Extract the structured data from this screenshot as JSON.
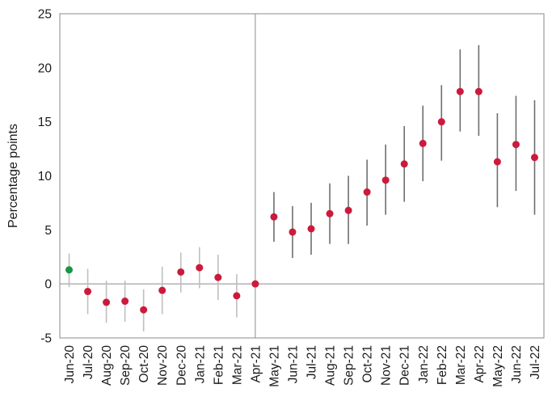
{
  "chart_data": {
    "type": "scatter",
    "title": "",
    "xlabel": "",
    "ylabel": "Percentage points",
    "ylim": [
      -5,
      25
    ],
    "yticks": [
      25,
      20,
      15,
      10,
      5,
      0,
      -5
    ],
    "grid": false,
    "legend_position": "none",
    "zero_line": true,
    "reference_category": "Apr-21",
    "palette": {
      "red": "#cc1a3c",
      "green": "#169647",
      "ci_light": "#bfbfbf",
      "ci_dark": "#6e6e6e",
      "axis": "#8a8a8a"
    },
    "points": [
      {
        "label": "Jun-20",
        "value": 1.3,
        "lo": -0.3,
        "hi": 2.8,
        "dot": "green",
        "ci": "ci_light"
      },
      {
        "label": "Jul-20",
        "value": -0.7,
        "lo": -2.8,
        "hi": 1.4,
        "dot": "red",
        "ci": "ci_light"
      },
      {
        "label": "Aug-20",
        "value": -1.7,
        "lo": -3.6,
        "hi": 0.3,
        "dot": "red",
        "ci": "ci_light"
      },
      {
        "label": "Sep-20",
        "value": -1.6,
        "lo": -3.5,
        "hi": 0.3,
        "dot": "red",
        "ci": "ci_light"
      },
      {
        "label": "Oct-20",
        "value": -2.4,
        "lo": -4.4,
        "hi": -0.5,
        "dot": "red",
        "ci": "ci_light"
      },
      {
        "label": "Nov-20",
        "value": -0.6,
        "lo": -2.8,
        "hi": 1.6,
        "dot": "red",
        "ci": "ci_light"
      },
      {
        "label": "Dec-20",
        "value": 1.1,
        "lo": -0.8,
        "hi": 2.9,
        "dot": "red",
        "ci": "ci_light"
      },
      {
        "label": "Jan-21",
        "value": 1.5,
        "lo": -0.4,
        "hi": 3.4,
        "dot": "red",
        "ci": "ci_light"
      },
      {
        "label": "Feb-21",
        "value": 0.6,
        "lo": -1.5,
        "hi": 2.7,
        "dot": "red",
        "ci": "ci_light"
      },
      {
        "label": "Mar-21",
        "value": -1.1,
        "lo": -3.1,
        "hi": 0.9,
        "dot": "red",
        "ci": "ci_light"
      },
      {
        "label": "Apr-21",
        "value": 0.0,
        "lo": 0.0,
        "hi": 0.0,
        "dot": "red",
        "ci": "none"
      },
      {
        "label": "May-21",
        "value": 6.2,
        "lo": 3.9,
        "hi": 8.5,
        "dot": "red",
        "ci": "ci_dark"
      },
      {
        "label": "Jun-21",
        "value": 4.8,
        "lo": 2.4,
        "hi": 7.2,
        "dot": "red",
        "ci": "ci_dark"
      },
      {
        "label": "Jul-21",
        "value": 5.1,
        "lo": 2.7,
        "hi": 7.5,
        "dot": "red",
        "ci": "ci_dark"
      },
      {
        "label": "Aug-21",
        "value": 6.5,
        "lo": 3.7,
        "hi": 9.3,
        "dot": "red",
        "ci": "ci_dark"
      },
      {
        "label": "Sep-21",
        "value": 6.8,
        "lo": 3.7,
        "hi": 10.0,
        "dot": "red",
        "ci": "ci_dark"
      },
      {
        "label": "Oct-21",
        "value": 8.5,
        "lo": 5.4,
        "hi": 11.5,
        "dot": "red",
        "ci": "ci_dark"
      },
      {
        "label": "Nov-21",
        "value": 9.6,
        "lo": 6.4,
        "hi": 12.9,
        "dot": "red",
        "ci": "ci_dark"
      },
      {
        "label": "Dec-21",
        "value": 11.1,
        "lo": 7.6,
        "hi": 14.6,
        "dot": "red",
        "ci": "ci_dark"
      },
      {
        "label": "Jan-22",
        "value": 13.0,
        "lo": 9.5,
        "hi": 16.5,
        "dot": "red",
        "ci": "ci_dark"
      },
      {
        "label": "Feb-22",
        "value": 15.0,
        "lo": 11.4,
        "hi": 18.4,
        "dot": "red",
        "ci": "ci_dark"
      },
      {
        "label": "Mar-22",
        "value": 17.8,
        "lo": 14.1,
        "hi": 21.7,
        "dot": "red",
        "ci": "ci_dark"
      },
      {
        "label": "Apr-22",
        "value": 17.8,
        "lo": 13.7,
        "hi": 22.1,
        "dot": "red",
        "ci": "ci_dark"
      },
      {
        "label": "May-22",
        "value": 11.3,
        "lo": 7.1,
        "hi": 15.8,
        "dot": "red",
        "ci": "ci_dark"
      },
      {
        "label": "Jun-22",
        "value": 12.9,
        "lo": 8.6,
        "hi": 17.4,
        "dot": "red",
        "ci": "ci_dark"
      },
      {
        "label": "Jul-22",
        "value": 11.7,
        "lo": 6.4,
        "hi": 17.0,
        "dot": "red",
        "ci": "ci_dark"
      }
    ]
  }
}
